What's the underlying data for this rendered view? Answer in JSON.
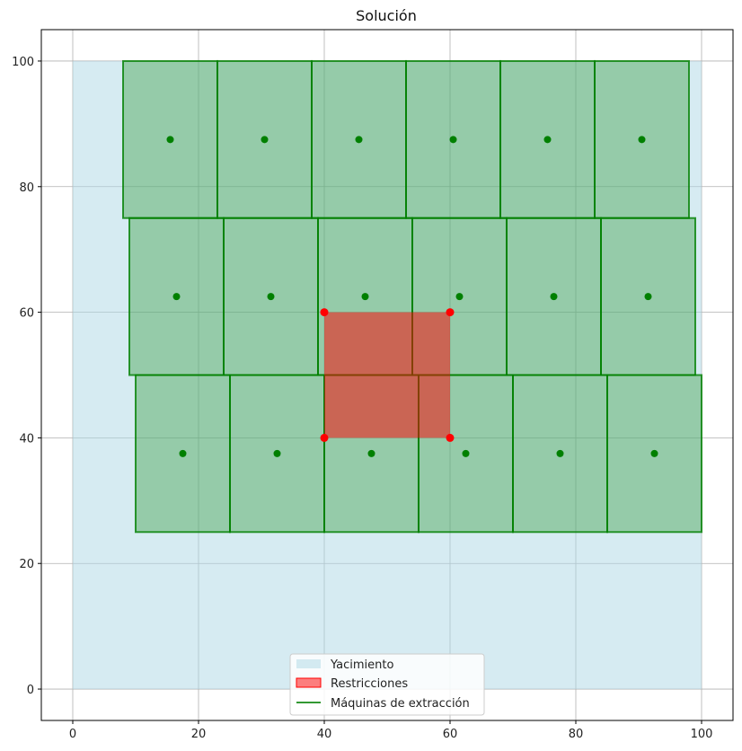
{
  "chart_data": {
    "type": "scatter",
    "title": "Solución",
    "xlabel": "",
    "ylabel": "",
    "xlim": [
      -5,
      105
    ],
    "ylim": [
      -5,
      105
    ],
    "grid": true,
    "xticks": [
      "0",
      "20",
      "40",
      "60",
      "80",
      "100"
    ],
    "yticks": [
      "0",
      "20",
      "40",
      "60",
      "80",
      "100"
    ],
    "yacimiento": {
      "x0": 0,
      "y0": 0,
      "x1": 100,
      "y1": 100
    },
    "restricciones": {
      "x0": 40,
      "y0": 40,
      "x1": 60,
      "y1": 60,
      "points": [
        [
          40,
          60
        ],
        [
          60,
          60
        ],
        [
          40,
          40
        ],
        [
          60,
          40
        ]
      ]
    },
    "maquinas": [
      {
        "x0": 8,
        "y0": 75,
        "x1": 23,
        "y1": 100,
        "cx": 15.5,
        "cy": 87.5
      },
      {
        "x0": 23,
        "y0": 75,
        "x1": 38,
        "y1": 100,
        "cx": 30.5,
        "cy": 87.5
      },
      {
        "x0": 38,
        "y0": 75,
        "x1": 53,
        "y1": 100,
        "cx": 45.5,
        "cy": 87.5
      },
      {
        "x0": 53,
        "y0": 75,
        "x1": 68,
        "y1": 100,
        "cx": 60.5,
        "cy": 87.5
      },
      {
        "x0": 68,
        "y0": 75,
        "x1": 83,
        "y1": 100,
        "cx": 75.5,
        "cy": 87.5
      },
      {
        "x0": 83,
        "y0": 75,
        "x1": 98,
        "y1": 100,
        "cx": 90.5,
        "cy": 87.5
      },
      {
        "x0": 9,
        "y0": 50,
        "x1": 24,
        "y1": 75,
        "cx": 16.5,
        "cy": 62.5
      },
      {
        "x0": 24,
        "y0": 50,
        "x1": 39,
        "y1": 75,
        "cx": 31.5,
        "cy": 62.5
      },
      {
        "x0": 39,
        "y0": 50,
        "x1": 54,
        "y1": 75,
        "cx": 46.5,
        "cy": 62.5
      },
      {
        "x0": 54,
        "y0": 50,
        "x1": 69,
        "y1": 75,
        "cx": 61.5,
        "cy": 62.5
      },
      {
        "x0": 69,
        "y0": 50,
        "x1": 84,
        "y1": 75,
        "cx": 76.5,
        "cy": 62.5
      },
      {
        "x0": 84,
        "y0": 50,
        "x1": 99,
        "y1": 75,
        "cx": 91.5,
        "cy": 62.5
      },
      {
        "x0": 10,
        "y0": 25,
        "x1": 25,
        "y1": 50,
        "cx": 17.5,
        "cy": 37.5
      },
      {
        "x0": 25,
        "y0": 25,
        "x1": 40,
        "y1": 50,
        "cx": 32.5,
        "cy": 37.5
      },
      {
        "x0": 40,
        "y0": 25,
        "x1": 55,
        "y1": 50,
        "cx": 47.5,
        "cy": 37.5
      },
      {
        "x0": 55,
        "y0": 25,
        "x1": 70,
        "y1": 50,
        "cx": 62.5,
        "cy": 37.5
      },
      {
        "x0": 70,
        "y0": 25,
        "x1": 85,
        "y1": 50,
        "cx": 77.5,
        "cy": 37.5
      },
      {
        "x0": 85,
        "y0": 25,
        "x1": 100,
        "y1": 50,
        "cx": 92.5,
        "cy": 37.5
      }
    ],
    "legend": {
      "placement": "bottom-center",
      "entries": [
        "Yacimiento",
        "Restricciones",
        "Máquinas de extracción"
      ]
    },
    "colors": {
      "yacimiento": "#add8e6",
      "restricciones": "#ff0000",
      "maquinas_fill": "#008000",
      "maquinas_edge": "#008000",
      "points_red": "#ff0000",
      "points_green": "#008000",
      "grid": "#b0b0b0"
    }
  }
}
